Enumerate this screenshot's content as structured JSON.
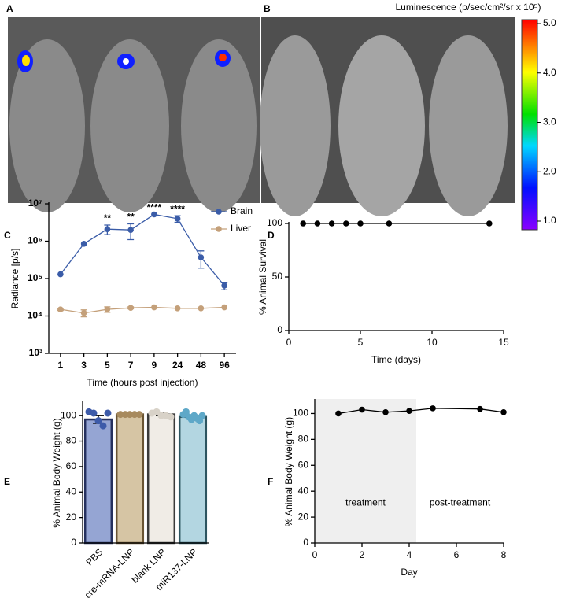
{
  "panels": [
    "A",
    "B",
    "C",
    "D",
    "E",
    "F"
  ],
  "colorbar": {
    "title": "Luminescence (p/sec/cm²/sr x 10⁵)",
    "ticks": [
      {
        "value": 5,
        "label": "5.0"
      },
      {
        "value": 4,
        "label": "4.0"
      },
      {
        "value": 3,
        "label": "3.0"
      },
      {
        "value": 2,
        "label": "2.0"
      },
      {
        "value": 1,
        "label": "1.0"
      }
    ]
  },
  "chart_data": [
    {
      "type": "line",
      "xlabel": "Time (hours post injection)",
      "ylabel": "Radiance [p/s]",
      "categories": [
        "1",
        "3",
        "5",
        "7",
        "9",
        "24",
        "48",
        "96"
      ],
      "log_y": true,
      "ylim": [
        1000,
        10000000
      ],
      "yticks": [
        {
          "value": 1000,
          "label": "10³"
        },
        {
          "value": 10000,
          "label": "10⁴"
        },
        {
          "value": 100000,
          "label": "10⁵"
        },
        {
          "value": 1000000,
          "label": "10⁶"
        },
        {
          "value": 10000000,
          "label": "10⁷"
        }
      ],
      "legend": "upper right",
      "series": [
        {
          "name": "Brain",
          "color": "#3a5ca8",
          "values": [
            130000,
            850000,
            2100000,
            2000000,
            5200000,
            4000000,
            370000,
            65000
          ],
          "errors": [
            0,
            0,
            600000,
            900000,
            0,
            800000,
            180000,
            15000
          ]
        },
        {
          "name": "Liver",
          "color": "#c4a07a",
          "values": [
            15000,
            12000,
            15000,
            16500,
            17000,
            16000,
            16000,
            17000
          ],
          "errors": [
            1000,
            2500,
            2500,
            1000,
            0,
            0,
            0,
            0
          ]
        }
      ],
      "significance": [
        null,
        null,
        "**",
        "**",
        "****",
        "****",
        null,
        null
      ]
    },
    {
      "type": "line",
      "xlabel": "Time (days)",
      "ylabel": "% Animal Survival",
      "x": [
        1,
        2,
        3,
        4,
        5,
        7,
        14
      ],
      "values": [
        100,
        100,
        100,
        100,
        100,
        100,
        100
      ],
      "color": "#000000",
      "xlim": [
        0,
        15
      ],
      "xticks": [
        0,
        5,
        10,
        15
      ],
      "ylim": [
        0,
        100
      ],
      "yticks": [
        0,
        50,
        100
      ]
    },
    {
      "type": "bar",
      "ylabel": "% Animal Body Weight (g)",
      "categories": [
        "PBS",
        "cre-mRNA-LNP",
        "blank LNP",
        "miR137-LNP"
      ],
      "values": [
        97,
        101,
        101,
        99
      ],
      "errors": [
        3,
        1,
        1,
        1.5
      ],
      "points": [
        [
          103,
          102,
          96,
          92,
          102
        ],
        [
          101,
          101,
          101,
          101,
          101
        ],
        [
          102,
          103,
          100,
          100,
          99
        ],
        [
          101,
          103,
          99,
          97,
          100,
          98,
          96,
          100
        ]
      ],
      "colors": [
        "#95a5d3",
        "#d6c5a4",
        "#f0ece6",
        "#b3d6e1"
      ],
      "edge_colors": [
        "#25305e",
        "#6a5533",
        "#3a3a3a",
        "#2d5560"
      ],
      "point_colors": [
        "#3d5ba9",
        "#a78a5e",
        "#d8d2c8",
        "#5ea8c8"
      ],
      "ylim": [
        0,
        110
      ],
      "yticks": [
        0,
        20,
        40,
        60,
        80,
        100
      ]
    },
    {
      "type": "line",
      "xlabel": "Day",
      "ylabel": "% Animal Body Weight (g)",
      "x": [
        1,
        2,
        3,
        4,
        5,
        7,
        8
      ],
      "values": [
        100,
        103,
        101,
        102,
        104,
        103.5,
        101
      ],
      "color": "#000000",
      "xlim": [
        0,
        8
      ],
      "xticks": [
        0,
        2,
        4,
        6,
        8
      ],
      "ylim": [
        0,
        110
      ],
      "yticks": [
        0,
        20,
        40,
        60,
        80,
        100
      ],
      "shade_xlim": [
        0,
        4.3
      ],
      "annotations": [
        "treatment",
        "post-treatment"
      ]
    }
  ]
}
